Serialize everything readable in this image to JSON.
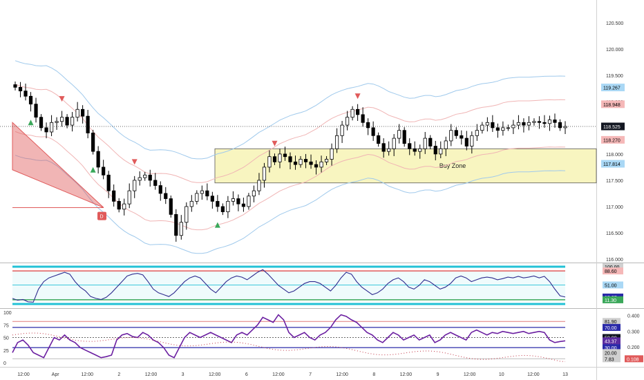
{
  "colors": {
    "up": "#ffffff",
    "down": "#000000",
    "band_outer": "#9fc9ec",
    "band_mid": "#f0b4b4",
    "buy_zone_fill": "#f8f5c0",
    "rsi_line": "#2f2b8f",
    "stoch_line": "#6a1ea0",
    "cyan": "#22c1d6",
    "red": "#e05a5a",
    "green": "#3aa85a",
    "tag_blue": "#aad8f5",
    "tag_red": "#f5b8b8",
    "tag_black": "#131722",
    "tag_purple": "#5b2ca0",
    "tag_navy": "#2a2aa8",
    "tag_gray": "#d0d0d0"
  },
  "chart_data": [
    {
      "type": "candlestick",
      "y_range": [
        116.0,
        120.8
      ],
      "y_ticks": [
        "120.500",
        "120.000",
        "119.500",
        "119.000",
        "118.500",
        "118.000",
        "117.500",
        "117.000",
        "116.500",
        "116.000"
      ],
      "x_ticks": [
        "12:00",
        "Apr",
        "12:00",
        "2",
        "12:00",
        "3",
        "12:00",
        "6",
        "12:00",
        "7",
        "12:00",
        "8",
        "12:00",
        "9",
        "12:00",
        "10",
        "12:00",
        "13"
      ],
      "annotation": "Buy Zone",
      "buy_zone": [
        117.45,
        118.1
      ],
      "price_tags": [
        {
          "label": "119.267",
          "value": 119.267,
          "style": "blue"
        },
        {
          "label": "118.948",
          "value": 118.948,
          "style": "red"
        },
        {
          "label": "118.525",
          "value": 118.525,
          "style": "black"
        },
        {
          "label": "118.270",
          "value": 118.27,
          "style": "red"
        },
        {
          "label": "117.814",
          "value": 117.814,
          "style": "blue"
        }
      ],
      "marker_label": "D",
      "closes": [
        119.27,
        119.2,
        119.1,
        118.95,
        118.7,
        118.5,
        118.42,
        118.6,
        118.62,
        118.7,
        118.55,
        118.7,
        118.85,
        118.72,
        118.4,
        118.05,
        117.75,
        117.6,
        117.3,
        117.1,
        116.95,
        117.05,
        117.3,
        117.5,
        117.55,
        117.6,
        117.5,
        117.4,
        117.25,
        117.15,
        116.85,
        116.45,
        116.7,
        117.0,
        117.1,
        117.25,
        117.3,
        117.2,
        117.1,
        117.0,
        116.9,
        117.1,
        117.15,
        117.05,
        117.0,
        117.2,
        117.3,
        117.5,
        117.75,
        117.95,
        117.85,
        118.0,
        117.95,
        117.85,
        117.8,
        117.9,
        117.85,
        117.8,
        117.75,
        117.85,
        117.9,
        118.1,
        118.35,
        118.55,
        118.7,
        118.85,
        118.75,
        118.6,
        118.5,
        118.35,
        118.2,
        118.05,
        118.1,
        118.3,
        118.45,
        118.2,
        118.1,
        118.05,
        118.1,
        118.3,
        118.15,
        118.0,
        118.1,
        118.25,
        118.45,
        118.35,
        118.3,
        118.15,
        118.35,
        118.45,
        118.55,
        118.6,
        118.5,
        118.45,
        118.5,
        118.5,
        118.55,
        118.6,
        118.55,
        118.6,
        118.62,
        118.6,
        118.58,
        118.65,
        118.6,
        118.5,
        118.525
      ]
    },
    {
      "type": "line",
      "y_range": [
        0,
        100
      ],
      "levels": [
        100,
        88.6,
        51.0,
        18.67,
        11.3
      ],
      "level_labels": [
        "100.00",
        "88.60",
        "51.00",
        "18.67",
        "11.30"
      ],
      "series": [
        {
          "values": [
            15,
            10,
            12,
            6,
            5,
            40,
            60,
            70,
            75,
            80,
            85,
            80,
            60,
            45,
            35,
            20,
            15,
            12,
            18,
            30,
            45,
            60,
            75,
            80,
            82,
            78,
            60,
            40,
            30,
            25,
            20,
            30,
            45,
            60,
            70,
            75,
            70,
            55,
            40,
            30,
            45,
            60,
            70,
            75,
            72,
            65,
            75,
            85,
            92,
            80,
            65,
            50,
            40,
            30,
            35,
            45,
            55,
            60,
            60,
            55,
            45,
            35,
            50,
            70,
            85,
            80,
            60,
            45,
            35,
            25,
            30,
            40,
            55,
            65,
            70,
            60,
            45,
            40,
            50,
            65,
            60,
            50,
            40,
            45,
            55,
            70,
            75,
            70,
            60,
            65,
            70,
            72,
            70,
            65,
            68,
            72,
            70,
            74,
            70,
            72,
            75,
            70,
            74,
            60,
            40,
            22,
            18.67
          ]
        }
      ]
    },
    {
      "type": "line",
      "y_range": [
        0,
        100
      ],
      "left_ticks": [
        "100",
        "75",
        "50",
        "25",
        "0"
      ],
      "right_ticks": [
        "0.400",
        "0.300",
        "0.200"
      ],
      "tags": [
        {
          "label": "81.90",
          "value": 81.9,
          "style": "gray"
        },
        {
          "label": "70.00",
          "value": 70.0,
          "style": "navy"
        },
        {
          "label": "50.00",
          "value": 50.0,
          "style": "black"
        },
        {
          "label": "43.37",
          "value": 43.37,
          "style": "purple"
        },
        {
          "label": "30.00",
          "value": 30.0,
          "style": "navy"
        },
        {
          "label": "20.00",
          "value": 20.0,
          "style": "gray"
        },
        {
          "label": "7.83",
          "value": 7.83,
          "style": "gray"
        }
      ],
      "right_tag": "0.108",
      "series": [
        {
          "values": [
            20,
            40,
            45,
            35,
            20,
            15,
            10,
            30,
            50,
            45,
            55,
            45,
            40,
            30,
            25,
            20,
            15,
            10,
            12,
            15,
            45,
            55,
            58,
            52,
            50,
            60,
            55,
            45,
            40,
            30,
            15,
            10,
            30,
            50,
            60,
            55,
            50,
            55,
            60,
            55,
            50,
            45,
            40,
            55,
            60,
            55,
            65,
            75,
            90,
            85,
            80,
            95,
            85,
            60,
            50,
            55,
            60,
            50,
            45,
            55,
            60,
            70,
            85,
            95,
            92,
            85,
            80,
            70,
            60,
            55,
            45,
            40,
            50,
            60,
            55,
            45,
            50,
            55,
            45,
            50,
            55,
            40,
            45,
            55,
            60,
            55,
            50,
            45,
            60,
            65,
            60,
            55,
            60,
            58,
            62,
            60,
            58,
            60,
            62,
            58,
            60,
            62,
            60,
            45,
            40,
            42,
            43.37
          ]
        }
      ]
    }
  ]
}
